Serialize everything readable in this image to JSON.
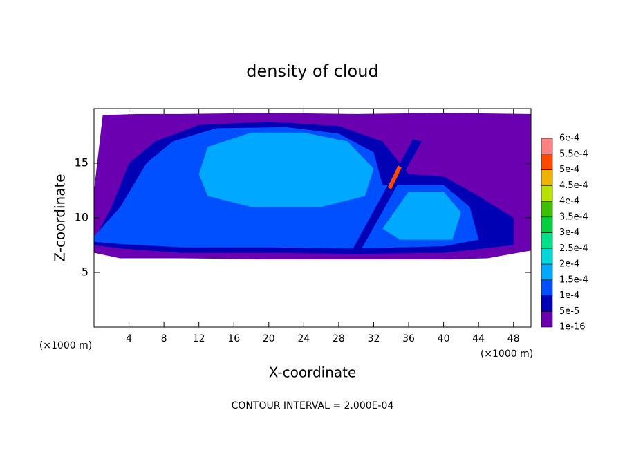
{
  "chart_data": {
    "type": "contour",
    "title": "density of cloud",
    "xlabel": "X-coordinate",
    "ylabel": "Z-coordinate",
    "x_unit_labels": [
      "(×1000 m)",
      "(×1000 m)"
    ],
    "annotation": "CONTOUR INTERVAL = 2.000E-04",
    "xlim": [
      0,
      50
    ],
    "ylim": [
      0,
      20
    ],
    "xticks": [
      4,
      8,
      12,
      16,
      20,
      24,
      28,
      32,
      36,
      40,
      44,
      48
    ],
    "yticks": [
      5,
      10,
      15
    ],
    "levels": [
      {
        "value": 1e-16,
        "label": "1e-16"
      },
      {
        "value": 5e-05,
        "label": "5e-5"
      },
      {
        "value": 0.0001,
        "label": "1e-4"
      },
      {
        "value": 0.00015,
        "label": "1.5e-4"
      },
      {
        "value": 0.0002,
        "label": "2e-4"
      },
      {
        "value": 0.00025,
        "label": "2.5e-4"
      },
      {
        "value": 0.0003,
        "label": "3e-4"
      },
      {
        "value": 0.00035,
        "label": "3.5e-4"
      },
      {
        "value": 0.0004,
        "label": "4e-4"
      },
      {
        "value": 0.00045,
        "label": "4.5e-4"
      },
      {
        "value": 0.0005,
        "label": "5e-4"
      },
      {
        "value": 0.00055,
        "label": "5.5e-4"
      },
      {
        "value": 0.0006,
        "label": "6e-4"
      }
    ],
    "colors": [
      "#6a00b0",
      "#0000b4",
      "#0050ff",
      "#00a8ff",
      "#00d8d8",
      "#00e088",
      "#00d040",
      "#3cc000",
      "#b8e000",
      "#f0b400",
      "#ff4800",
      "#ff8080"
    ]
  }
}
